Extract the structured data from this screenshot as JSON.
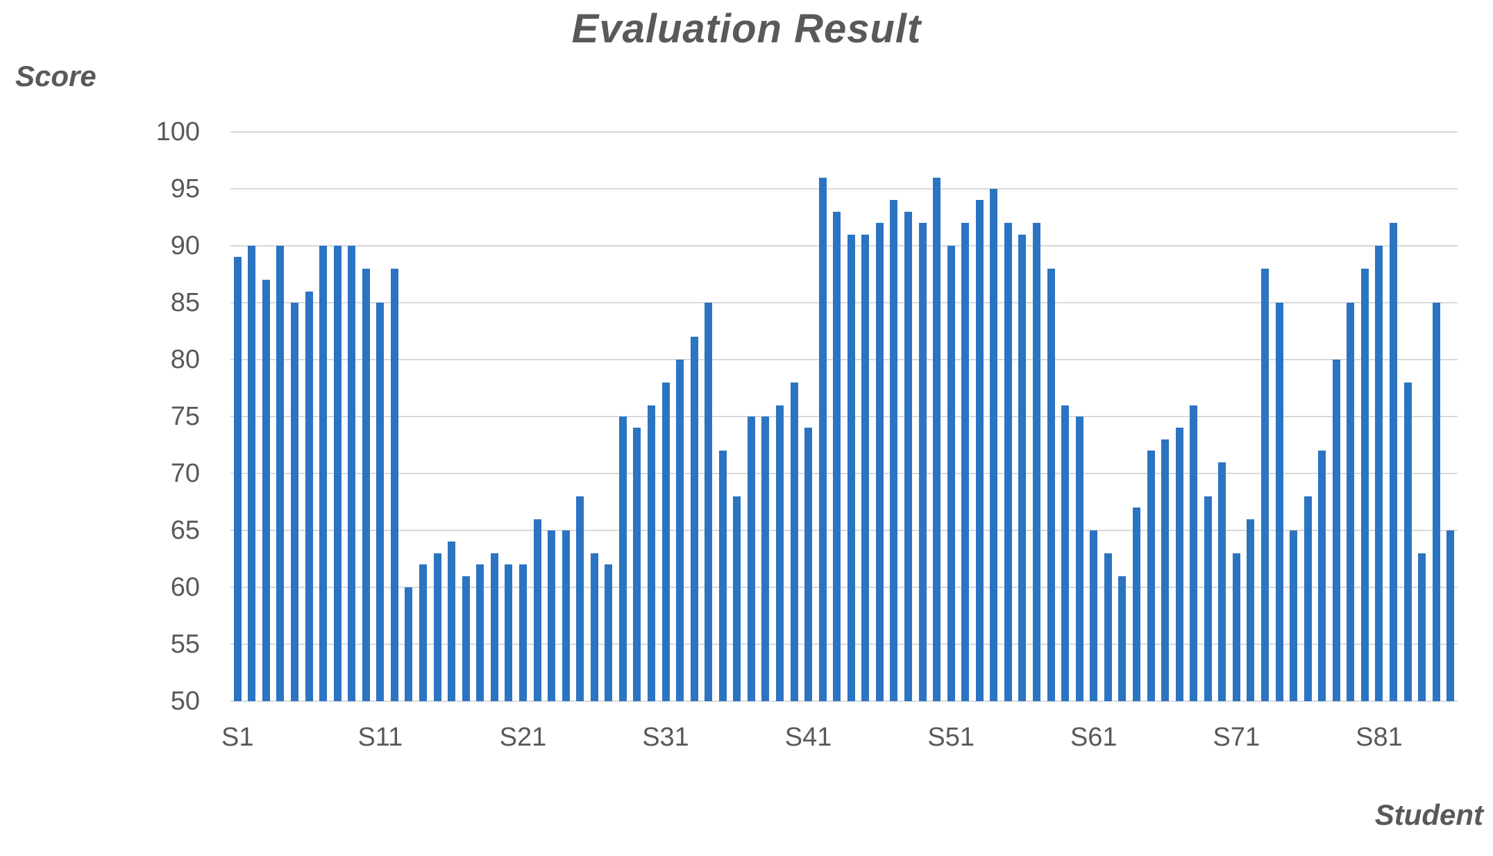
{
  "chart_data": {
    "type": "bar",
    "title": "Evaluation Result",
    "ylabel": "Score",
    "xlabel": "Student",
    "ylim": [
      50,
      100
    ],
    "ytick_step": 5,
    "yticks": [
      100,
      95,
      90,
      85,
      80,
      75,
      70,
      65,
      60,
      55,
      50
    ],
    "xticks_shown": [
      "S1",
      "S11",
      "S21",
      "S31",
      "S41",
      "S51",
      "S61",
      "S71",
      "S81"
    ],
    "grid": true,
    "legend": false,
    "bar_color": "#2B74C2",
    "gridline_color": "#D9D9D9",
    "axis_line_color": "#D9D9D9",
    "text_color": "#595959",
    "background_color": "#FFFFFF",
    "categories": [
      "S1",
      "S2",
      "S3",
      "S4",
      "S5",
      "S6",
      "S7",
      "S8",
      "S9",
      "S10",
      "S11",
      "S12",
      "S13",
      "S14",
      "S15",
      "S16",
      "S17",
      "S18",
      "S19",
      "S20",
      "S21",
      "S22",
      "S23",
      "S24",
      "S25",
      "S26",
      "S27",
      "S28",
      "S29",
      "S30",
      "S31",
      "S32",
      "S33",
      "S34",
      "S35",
      "S36",
      "S37",
      "S38",
      "S39",
      "S40",
      "S41",
      "S42",
      "S43",
      "S44",
      "S45",
      "S46",
      "S47",
      "S48",
      "S49",
      "S50",
      "S51",
      "S52",
      "S53",
      "S54",
      "S55",
      "S56",
      "S57",
      "S58",
      "S59",
      "S60",
      "S61",
      "S62",
      "S63",
      "S64",
      "S65",
      "S66",
      "S67",
      "S68",
      "S69",
      "S70",
      "S71",
      "S72",
      "S73",
      "S74",
      "S75",
      "S76",
      "S77",
      "S78",
      "S79",
      "S80",
      "S81",
      "S82",
      "S83",
      "S84",
      "S85",
      "S86"
    ],
    "values": [
      89,
      90,
      87,
      90,
      85,
      86,
      90,
      90,
      90,
      88,
      85,
      88,
      60,
      62,
      63,
      64,
      61,
      62,
      63,
      62,
      62,
      66,
      65,
      65,
      68,
      63,
      62,
      75,
      74,
      76,
      78,
      80,
      82,
      85,
      72,
      68,
      75,
      75,
      76,
      78,
      74,
      96,
      93,
      91,
      91,
      92,
      94,
      93,
      92,
      96,
      90,
      92,
      94,
      95,
      92,
      91,
      92,
      88,
      76,
      75,
      65,
      63,
      61,
      67,
      72,
      73,
      74,
      76,
      68,
      71,
      63,
      66,
      88,
      85,
      65,
      68,
      72,
      80,
      85,
      88,
      90,
      92,
      78,
      63,
      85,
      65
    ]
  }
}
